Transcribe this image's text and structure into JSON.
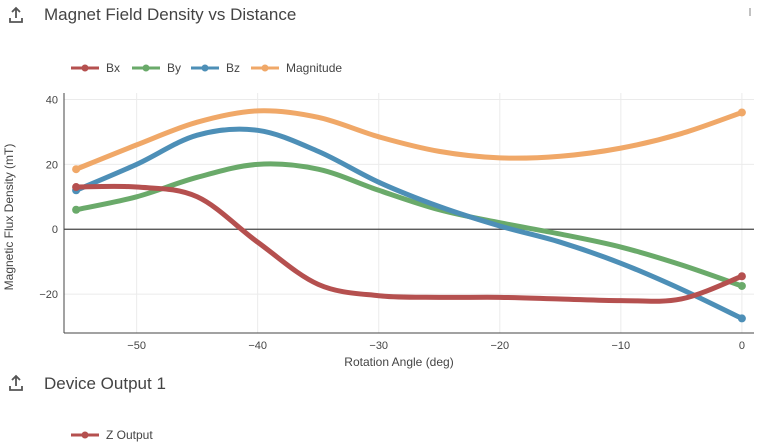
{
  "section1": {
    "title": "Magnet Field Density vs Distance"
  },
  "section2": {
    "title": "Device Output 1"
  },
  "chart_data": [
    {
      "type": "line",
      "title": "",
      "xlabel": "Rotation Angle (deg)",
      "ylabel": "Magnetic Flux Density (mT)",
      "xlim": [
        -56,
        1
      ],
      "ylim": [
        -32,
        42
      ],
      "x_ticks": [
        -50,
        -40,
        -30,
        -20,
        -10,
        0
      ],
      "y_ticks": [
        -20,
        0,
        20,
        40
      ],
      "grid": true,
      "legend_position": "top-left",
      "x": [
        -55,
        -50,
        -45,
        -40,
        -35,
        -30,
        -25,
        -20,
        -15,
        -10,
        -5,
        0
      ],
      "series": [
        {
          "name": "Bx",
          "color": "#b5504f",
          "values": [
            13,
            13,
            10,
            -4,
            -17,
            -20.5,
            -21,
            -21,
            -21.5,
            -22,
            -21.5,
            -14.5
          ]
        },
        {
          "name": "By",
          "color": "#6aaa6a",
          "values": [
            6,
            10,
            16,
            20,
            18.5,
            12,
            6,
            2,
            -1.5,
            -5.5,
            -11,
            -17.5
          ]
        },
        {
          "name": "Bz",
          "color": "#4d8fb7",
          "values": [
            12,
            20,
            29,
            30.5,
            24,
            14.5,
            7,
            1,
            -4,
            -10.5,
            -18.5,
            -27.5
          ]
        },
        {
          "name": "Magnitude",
          "color": "#f0a868",
          "values": [
            18.5,
            26,
            33,
            36.5,
            34.5,
            28.5,
            24,
            22,
            22.5,
            25,
            29.5,
            36
          ]
        }
      ]
    },
    {
      "type": "line",
      "legend_position": "top-left",
      "series": [
        {
          "name": "Z Output",
          "color": "#b5504f",
          "values": []
        }
      ]
    }
  ]
}
